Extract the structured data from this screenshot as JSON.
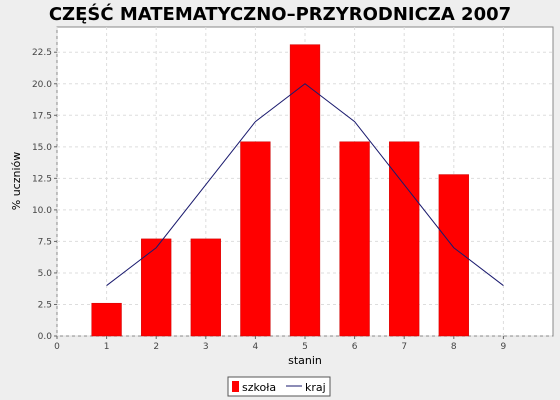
{
  "chart_data": {
    "type": "bar",
    "title": "CZĘŚĆ MATEMATYCZNO–PRZYRODNICZA 2007",
    "xlabel": "stanin",
    "ylabel": "% uczniów",
    "x_ticks": [
      "0",
      "1",
      "2",
      "3",
      "4",
      "5",
      "6",
      "7",
      "8",
      "9"
    ],
    "y_ticks": [
      "0.0",
      "2.5",
      "5.0",
      "7.5",
      "10.0",
      "12.5",
      "15.0",
      "17.5",
      "20.0",
      "22.5"
    ],
    "xlim": [
      0,
      10
    ],
    "ylim": [
      0,
      24.5
    ],
    "grid": true,
    "legend_position": "bottom",
    "series": [
      {
        "name": "szkoła",
        "type": "bar",
        "color": "#ff0000",
        "x": [
          1,
          2,
          3,
          4,
          5,
          6,
          7,
          8
        ],
        "values": [
          2.6,
          7.7,
          7.7,
          15.4,
          23.1,
          15.4,
          15.4,
          12.8
        ]
      },
      {
        "name": "kraj",
        "type": "line",
        "color": "#1a1a6e",
        "x": [
          1,
          2,
          3,
          4,
          5,
          6,
          7,
          8,
          9
        ],
        "values": [
          4,
          7,
          12,
          17,
          20,
          17,
          12,
          7,
          4
        ]
      }
    ]
  }
}
